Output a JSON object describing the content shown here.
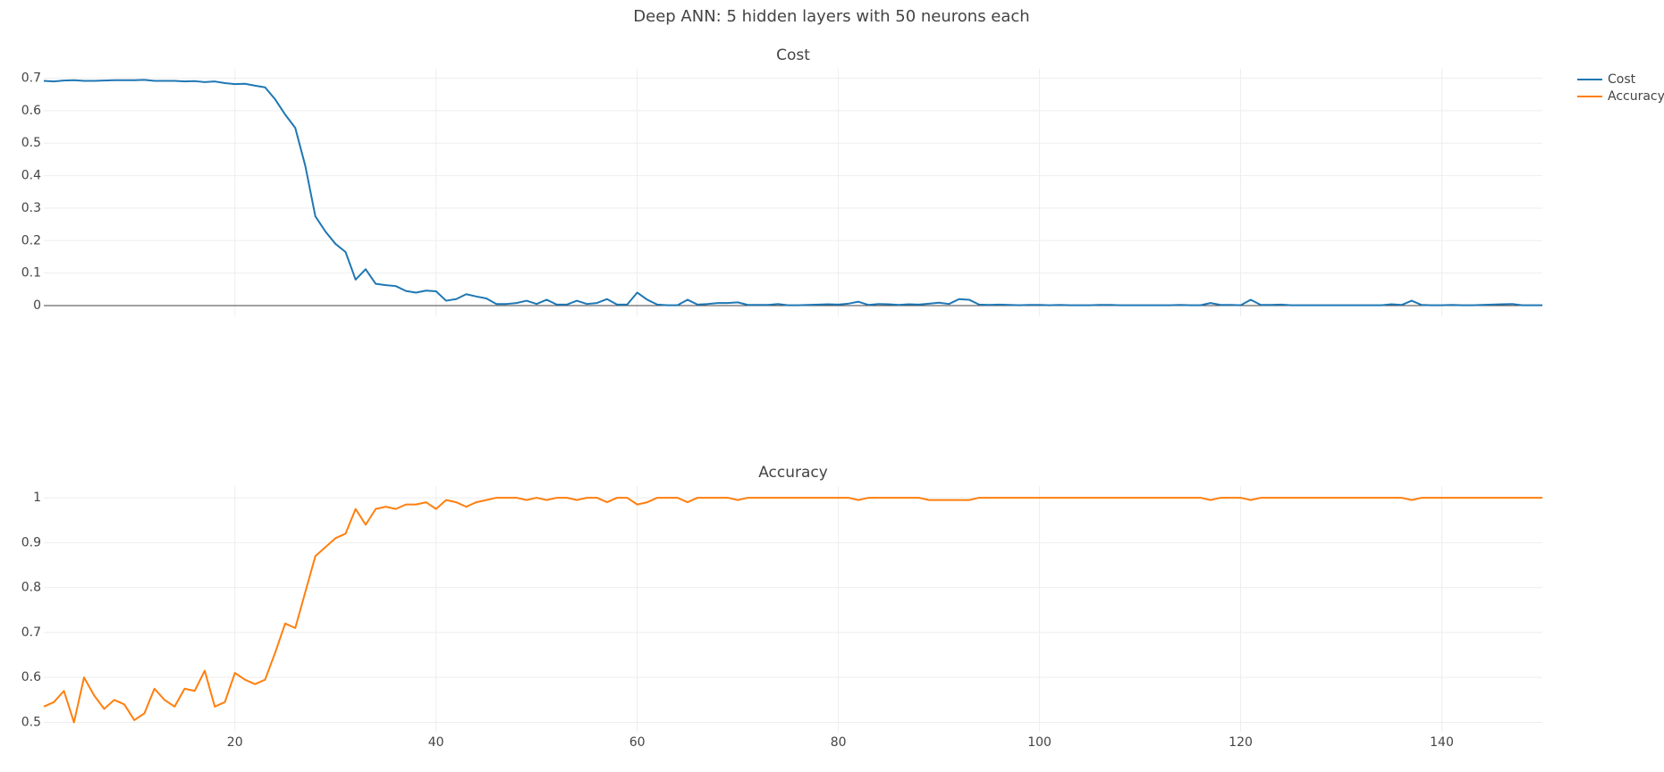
{
  "title": "Deep ANN: 5 hidden layers with 50 neurons each",
  "legend": "right",
  "chart_data": [
    {
      "type": "line",
      "title": "Cost",
      "x": [
        1,
        2,
        3,
        4,
        5,
        6,
        7,
        8,
        9,
        10,
        11,
        12,
        13,
        14,
        15,
        16,
        17,
        18,
        19,
        20,
        21,
        22,
        23,
        24,
        25,
        26,
        27,
        28,
        29,
        30,
        31,
        32,
        33,
        34,
        35,
        36,
        37,
        38,
        39,
        40,
        41,
        42,
        43,
        44,
        45,
        46,
        47,
        48,
        49,
        50,
        51,
        52,
        53,
        54,
        55,
        56,
        57,
        58,
        59,
        60,
        61,
        62,
        63,
        64,
        65,
        66,
        67,
        68,
        69,
        70,
        71,
        72,
        73,
        74,
        75,
        76,
        77,
        78,
        79,
        80,
        81,
        82,
        83,
        84,
        85,
        86,
        87,
        88,
        89,
        90,
        91,
        92,
        93,
        94,
        95,
        96,
        97,
        98,
        99,
        100,
        101,
        102,
        103,
        104,
        105,
        106,
        107,
        108,
        109,
        110,
        111,
        112,
        113,
        114,
        115,
        116,
        117,
        118,
        119,
        120,
        121,
        122,
        123,
        124,
        125,
        126,
        127,
        128,
        129,
        130,
        131,
        132,
        133,
        134,
        135,
        136,
        137,
        138,
        139,
        140,
        141,
        142,
        143,
        144,
        145,
        146,
        147,
        148,
        149,
        150
      ],
      "series": [
        {
          "name": "Cost",
          "color": "#1f77b4",
          "values": [
            0.692,
            0.69,
            0.693,
            0.694,
            0.692,
            0.692,
            0.693,
            0.694,
            0.694,
            0.694,
            0.695,
            0.692,
            0.692,
            0.692,
            0.69,
            0.691,
            0.688,
            0.69,
            0.685,
            0.682,
            0.683,
            0.677,
            0.672,
            0.635,
            0.588,
            0.547,
            0.43,
            0.275,
            0.228,
            0.19,
            0.165,
            0.08,
            0.112,
            0.067,
            0.063,
            0.06,
            0.045,
            0.04,
            0.046,
            0.044,
            0.015,
            0.02,
            0.035,
            0.028,
            0.022,
            0.005,
            0.005,
            0.008,
            0.015,
            0.005,
            0.018,
            0.003,
            0.003,
            0.015,
            0.005,
            0.008,
            0.02,
            0.003,
            0.003,
            0.04,
            0.018,
            0.003,
            0.001,
            0.001,
            0.018,
            0.003,
            0.005,
            0.008,
            0.008,
            0.01,
            0.002,
            0.002,
            0.002,
            0.005,
            0.001,
            0.001,
            0.002,
            0.003,
            0.004,
            0.003,
            0.006,
            0.012,
            0.002,
            0.005,
            0.004,
            0.002,
            0.004,
            0.003,
            0.006,
            0.009,
            0.005,
            0.02,
            0.018,
            0.003,
            0.002,
            0.003,
            0.002,
            0.001,
            0.002,
            0.002,
            0.001,
            0.002,
            0.001,
            0.001,
            0.001,
            0.002,
            0.002,
            0.001,
            0.001,
            0.001,
            0.001,
            0.001,
            0.001,
            0.002,
            0.001,
            0.001,
            0.008,
            0.002,
            0.002,
            0.001,
            0.018,
            0.002,
            0.002,
            0.003,
            0.001,
            0.001,
            0.001,
            0.001,
            0.001,
            0.001,
            0.001,
            0.001,
            0.001,
            0.001,
            0.004,
            0.002,
            0.015,
            0.002,
            0.001,
            0.001,
            0.002,
            0.001,
            0.001,
            0.002,
            0.003,
            0.004,
            0.005,
            0.001,
            0.001,
            0.001
          ]
        }
      ],
      "xlim": [
        1,
        150
      ],
      "xticks": [
        20,
        40,
        60,
        80,
        100,
        120,
        140
      ],
      "xtick_labels": false,
      "ylim": [
        -0.033,
        0.729
      ],
      "yticks": [
        0,
        0.1,
        0.2,
        0.3,
        0.4,
        0.5,
        0.6,
        0.7
      ],
      "grid": true,
      "zeroline": true
    },
    {
      "type": "line",
      "title": "Accuracy",
      "x": [
        1,
        2,
        3,
        4,
        5,
        6,
        7,
        8,
        9,
        10,
        11,
        12,
        13,
        14,
        15,
        16,
        17,
        18,
        19,
        20,
        21,
        22,
        23,
        24,
        25,
        26,
        27,
        28,
        29,
        30,
        31,
        32,
        33,
        34,
        35,
        36,
        37,
        38,
        39,
        40,
        41,
        42,
        43,
        44,
        45,
        46,
        47,
        48,
        49,
        50,
        51,
        52,
        53,
        54,
        55,
        56,
        57,
        58,
        59,
        60,
        61,
        62,
        63,
        64,
        65,
        66,
        67,
        68,
        69,
        70,
        71,
        72,
        73,
        74,
        75,
        76,
        77,
        78,
        79,
        80,
        81,
        82,
        83,
        84,
        85,
        86,
        87,
        88,
        89,
        90,
        91,
        92,
        93,
        94,
        95,
        96,
        97,
        98,
        99,
        100,
        101,
        102,
        103,
        104,
        105,
        106,
        107,
        108,
        109,
        110,
        111,
        112,
        113,
        114,
        115,
        116,
        117,
        118,
        119,
        120,
        121,
        122,
        123,
        124,
        125,
        126,
        127,
        128,
        129,
        130,
        131,
        132,
        133,
        134,
        135,
        136,
        137,
        138,
        139,
        140,
        141,
        142,
        143,
        144,
        145,
        146,
        147,
        148,
        149,
        150
      ],
      "series": [
        {
          "name": "Accuracy",
          "color": "#ff7f0e",
          "values": [
            0.535,
            0.545,
            0.57,
            0.5,
            0.6,
            0.56,
            0.53,
            0.55,
            0.54,
            0.505,
            0.52,
            0.575,
            0.55,
            0.535,
            0.575,
            0.57,
            0.615,
            0.535,
            0.545,
            0.61,
            0.595,
            0.585,
            0.595,
            0.655,
            0.72,
            0.71,
            0.79,
            0.87,
            0.89,
            0.91,
            0.92,
            0.975,
            0.94,
            0.975,
            0.98,
            0.975,
            0.985,
            0.985,
            0.99,
            0.975,
            0.995,
            0.99,
            0.98,
            0.99,
            0.995,
            1,
            1,
            1,
            0.995,
            1,
            0.995,
            1,
            1,
            0.995,
            1,
            1,
            0.99,
            1,
            1,
            0.985,
            0.99,
            1,
            1,
            1,
            0.99,
            1,
            1,
            1,
            1,
            0.995,
            1,
            1,
            1,
            1,
            1,
            1,
            1,
            1,
            1,
            1,
            1,
            0.995,
            1,
            1,
            1,
            1,
            1,
            1,
            0.995,
            0.995,
            0.995,
            0.995,
            0.995,
            1,
            1,
            1,
            1,
            1,
            1,
            1,
            1,
            1,
            1,
            1,
            1,
            1,
            1,
            1,
            1,
            1,
            1,
            1,
            1,
            1,
            1,
            1,
            0.995,
            1,
            1,
            1,
            0.995,
            1,
            1,
            1,
            1,
            1,
            1,
            1,
            1,
            1,
            1,
            1,
            1,
            1,
            1,
            1,
            0.995,
            1,
            1,
            1,
            1,
            1,
            1,
            1,
            1,
            1,
            1,
            1,
            1,
            1
          ]
        }
      ],
      "xlim": [
        1,
        150
      ],
      "xticks": [
        20,
        40,
        60,
        80,
        100,
        120,
        140
      ],
      "xtick_labels": true,
      "ylim": [
        0.479,
        1.026
      ],
      "yticks": [
        0.5,
        0.6,
        0.7,
        0.8,
        0.9,
        1
      ],
      "grid": true,
      "zeroline": false
    }
  ]
}
